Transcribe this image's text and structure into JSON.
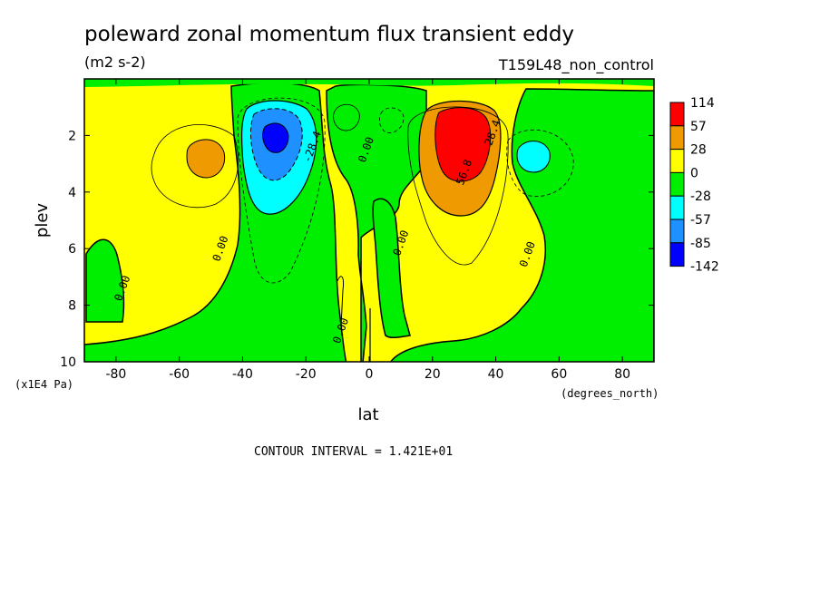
{
  "chart_data": {
    "type": "heatmap",
    "title": "poleward zonal momentum flux transient eddy",
    "units": "(m2 s-2)",
    "dataset": "T159L48_non_control",
    "xlabel": "lat",
    "x_units": "(degrees_north)",
    "ylabel": "plev",
    "y_units": "(x1E4 Pa)",
    "xlim": [
      -90,
      90
    ],
    "ylim": [
      10,
      0
    ],
    "x_ticks": [
      "-80",
      "-60",
      "-40",
      "-20",
      "0",
      "20",
      "40",
      "60",
      "80"
    ],
    "y_ticks": [
      "2",
      "4",
      "6",
      "8",
      "10"
    ],
    "colorbar_labels": [
      "114",
      "57",
      "28",
      "0",
      "-28",
      "-57",
      "-85",
      "-142"
    ],
    "colorbar_colors": [
      "#ff0000",
      "#ee9a00",
      "#ffff00",
      "#00ee00",
      "#00ffff",
      "#1e90ff",
      "#0000ff"
    ],
    "contour_labels": [
      {
        "text": "-28.4",
        "lat": -18,
        "plev": 2.4
      },
      {
        "text": "0.00",
        "lat": -1,
        "plev": 2.5
      },
      {
        "text": "28.4",
        "lat": 39,
        "plev": 1.9
      },
      {
        "text": "56.8",
        "lat": 30,
        "plev": 3.3
      },
      {
        "text": "0.00",
        "lat": -47,
        "plev": 6.0
      },
      {
        "text": "0.00",
        "lat": 10,
        "plev": 5.8
      },
      {
        "text": "0.00",
        "lat": 50,
        "plev": 6.2
      },
      {
        "text": "0.00",
        "lat": -78,
        "plev": 7.4
      },
      {
        "text": "0.00",
        "lat": -9,
        "plev": 8.9
      }
    ],
    "contour_interval_text": "CONTOUR INTERVAL = 1.421E+01",
    "features": [
      {
        "sign": "positive",
        "peak_lat": 29,
        "peak_plev": 2.3,
        "max_value": 114
      },
      {
        "sign": "negative",
        "peak_lat": -30,
        "peak_plev": 2.2,
        "min_value": -142
      },
      {
        "sign": "positive",
        "peak_lat": -51,
        "peak_plev": 2.9,
        "value": 28
      },
      {
        "sign": "negative",
        "peak_lat": 52,
        "peak_plev": 2.8,
        "value": -57
      }
    ]
  }
}
